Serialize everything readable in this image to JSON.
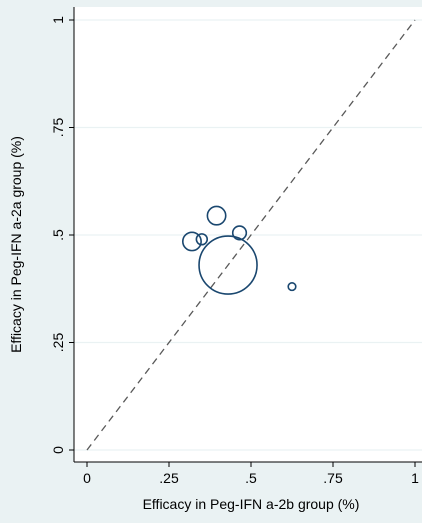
{
  "chart_data": {
    "type": "scatter",
    "title": "",
    "xlabel": "Efficacy in Peg-IFN a-2b group (%)",
    "ylabel": "Efficacy in Peg-IFN a-2a group (%)",
    "xlim": [
      0,
      1
    ],
    "ylim": [
      0,
      1
    ],
    "x_ticks": [
      0,
      0.25,
      0.5,
      0.75,
      1
    ],
    "x_tick_labels": [
      "0",
      ".25",
      ".5",
      ".75",
      "1"
    ],
    "y_ticks": [
      0,
      0.25,
      0.5,
      0.75,
      1
    ],
    "y_tick_labels": [
      "0",
      ".25",
      ".5",
      ".75",
      "1"
    ],
    "grid": true,
    "reference_line": {
      "style": "dashed",
      "from": [
        0,
        0
      ],
      "to": [
        1,
        1
      ]
    },
    "points": [
      {
        "x": 0.43,
        "y": 0.43,
        "weight": 1.0
      },
      {
        "x": 0.395,
        "y": 0.545,
        "weight": 0.1
      },
      {
        "x": 0.32,
        "y": 0.485,
        "weight": 0.1
      },
      {
        "x": 0.35,
        "y": 0.49,
        "weight": 0.035
      },
      {
        "x": 0.465,
        "y": 0.505,
        "weight": 0.055
      },
      {
        "x": 0.625,
        "y": 0.38,
        "weight": 0.017
      }
    ],
    "colors": {
      "background": "#eaf2f3",
      "plot_background": "#ffffff",
      "marker": "#1a476f",
      "grid": "#eaf2f3",
      "reference_line": "#595959"
    }
  }
}
